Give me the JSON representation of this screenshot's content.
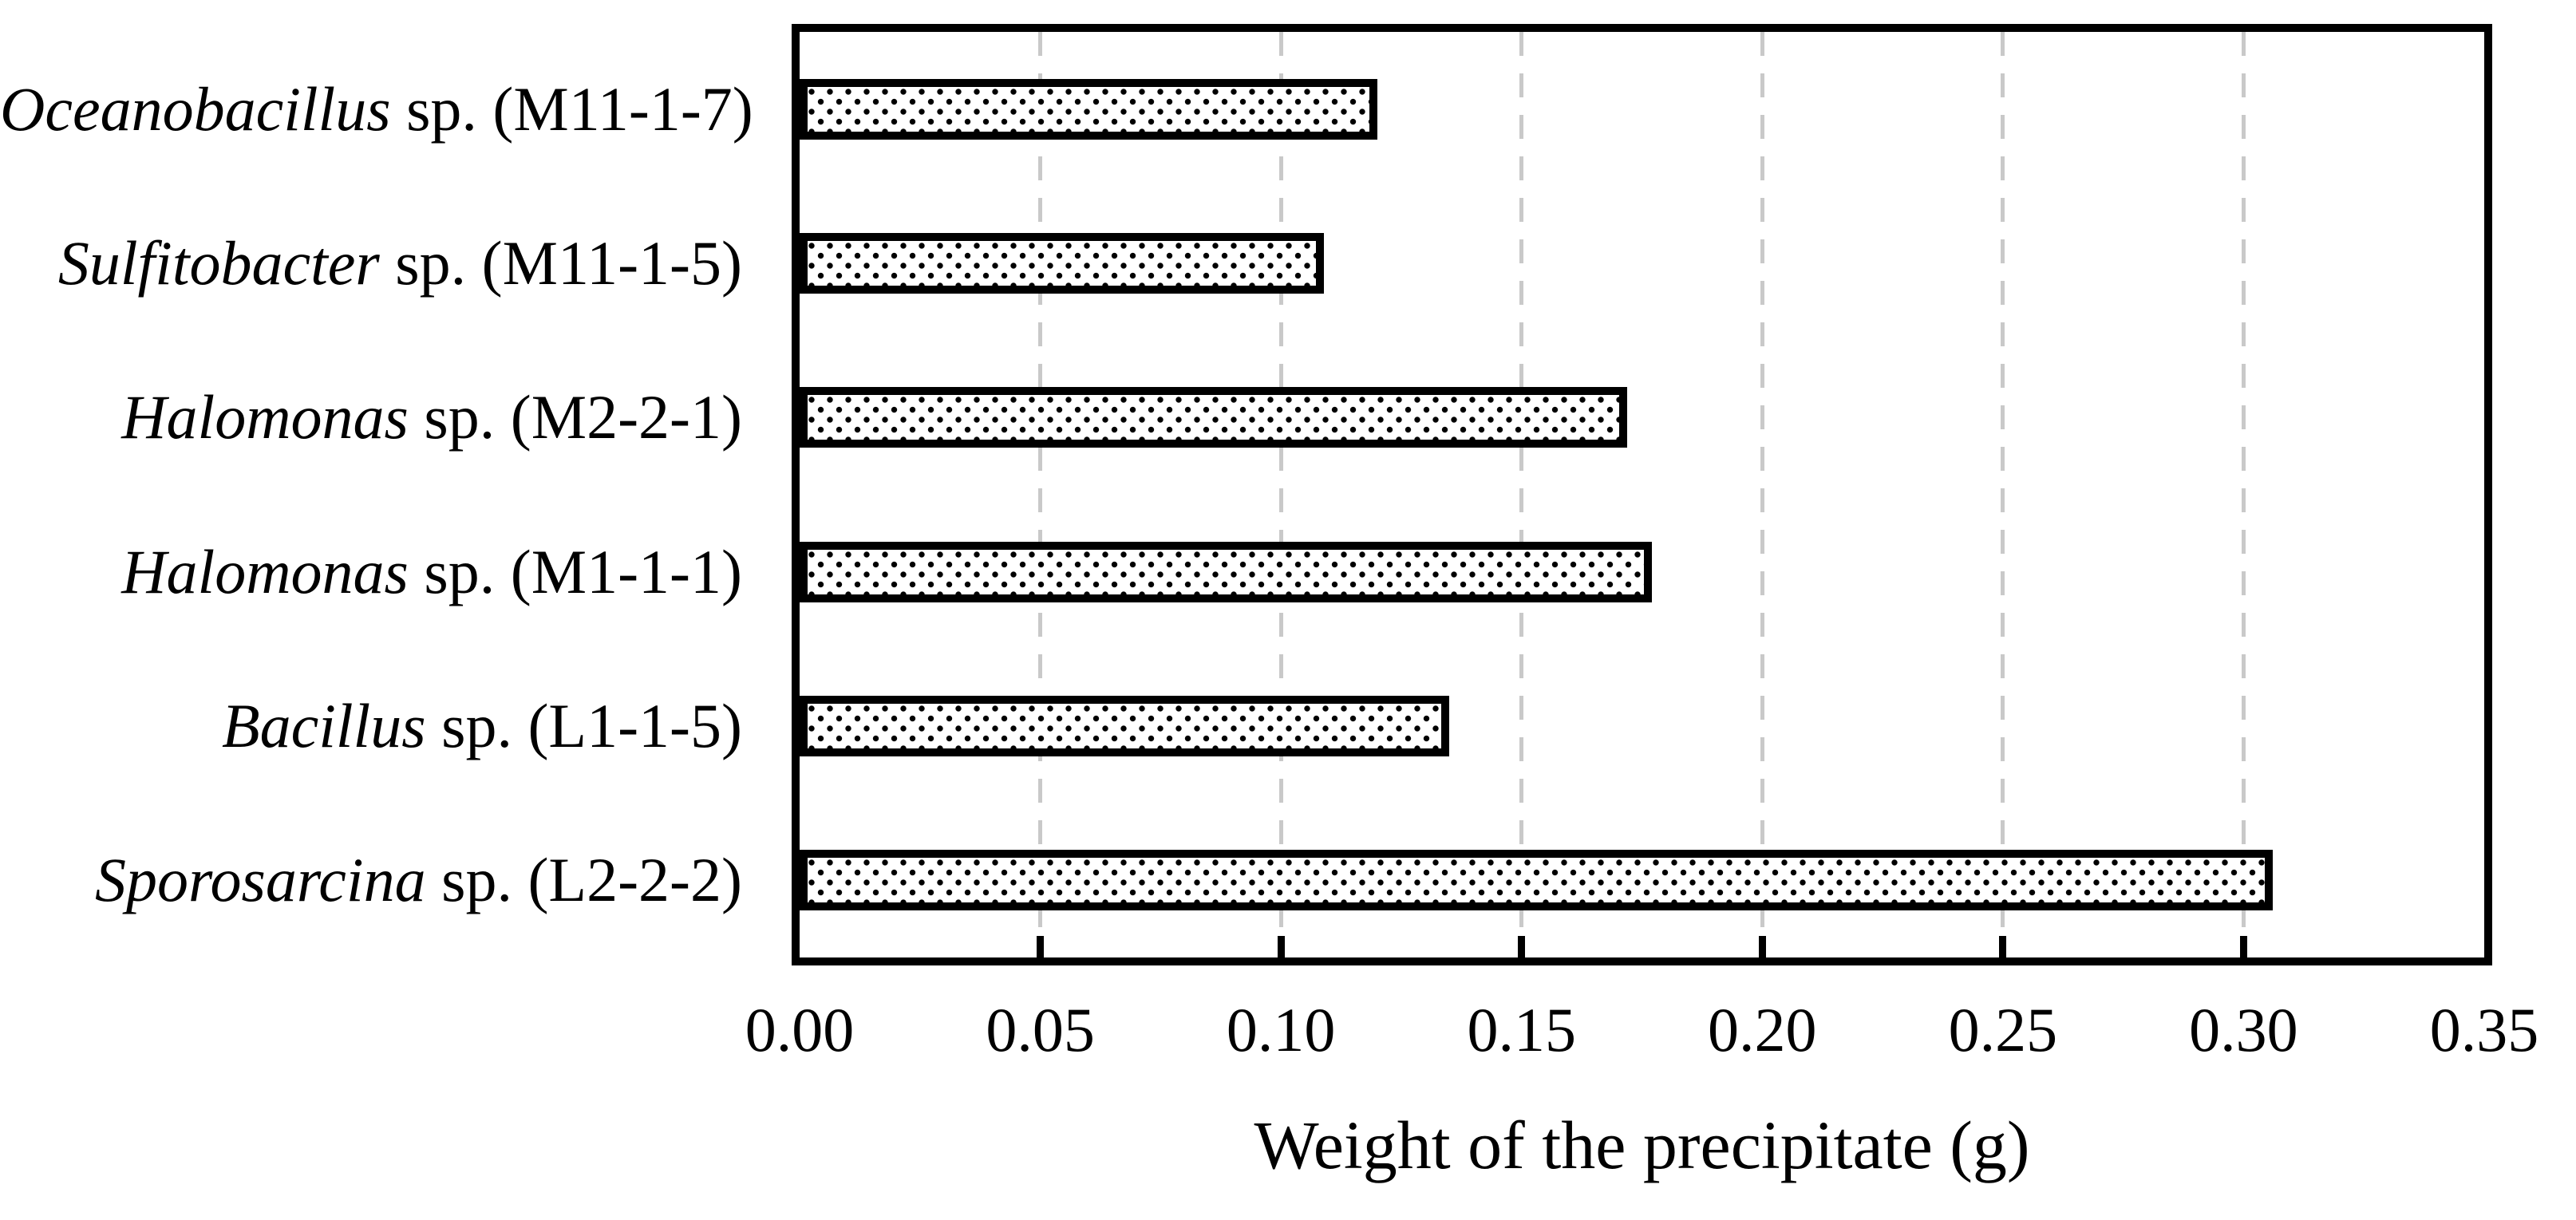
{
  "figure": {
    "background_color": "#ffffff",
    "frame_color": "#000000",
    "gridline_color": "#c9c9c9",
    "bar_fill": "white-with-black-dot-pattern",
    "bar_border_color": "#000000",
    "text_color": "#000000"
  },
  "chart_data": {
    "type": "bar",
    "orientation": "horizontal",
    "title": "",
    "xlabel": "Weight of the precipitate (g)",
    "ylabel": "",
    "xlim": [
      0,
      0.35
    ],
    "xtick_labels": [
      "0.00",
      "0.05",
      "0.10",
      "0.15",
      "0.20",
      "0.25",
      "0.30",
      "0.35"
    ],
    "xtick_values": [
      0,
      0.05,
      0.1,
      0.15,
      0.2,
      0.25,
      0.3,
      0.35
    ],
    "grid": "vertical-dashed",
    "legend_position": "none",
    "categories": [
      "Oceanobacillus sp. (M11-1-7)",
      "Sulfitobacter sp. (M11-1-5)",
      "Halomonas sp. (M2-2-1)",
      "Halomonas sp. (M1-1-1)",
      "Bacillus sp. (L1-1-5)",
      "Sporosarcina sp. (L2-2-2)"
    ],
    "categories_styled": [
      {
        "italic": "Oceanobacillus",
        "rest": " sp. (M11-1-7)"
      },
      {
        "italic": "Sulfitobacter",
        "rest": " sp. (M11-1-5)"
      },
      {
        "italic": "Halomonas",
        "rest": " sp. (M2-2-1)"
      },
      {
        "italic": "Halomonas",
        "rest": " sp. (M1-1-1)"
      },
      {
        "italic": "Bacillus",
        "rest": " sp. (L1-1-5)"
      },
      {
        "italic": "Sporosarcina",
        "rest": " sp. (L2-2-2)"
      }
    ],
    "values": [
      0.12,
      0.109,
      0.172,
      0.177,
      0.135,
      0.306
    ]
  }
}
